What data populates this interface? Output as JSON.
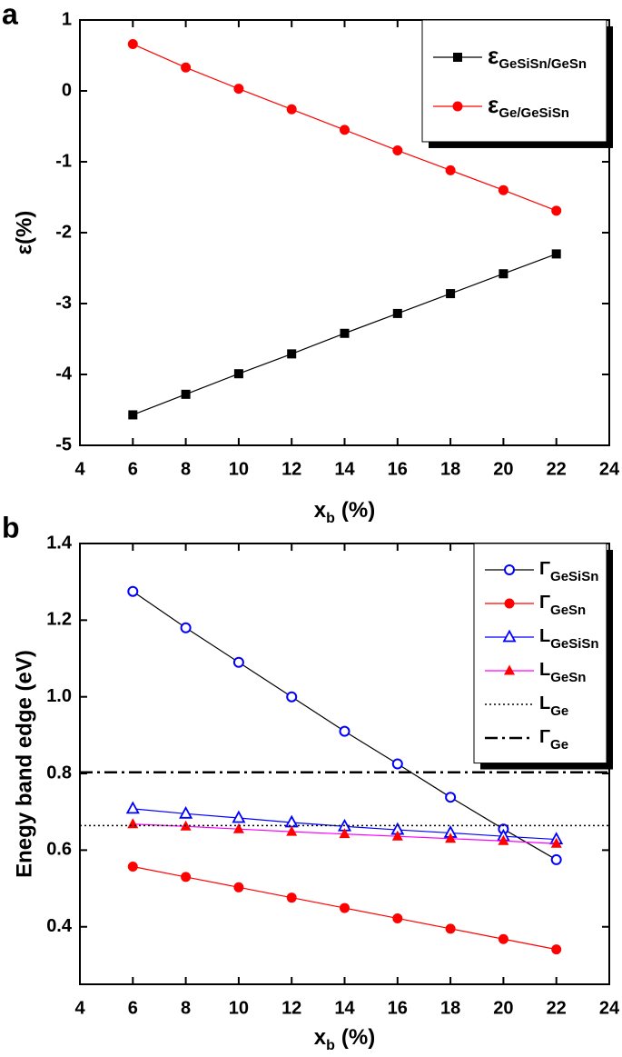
{
  "chart_data": [
    {
      "type": "line",
      "panel_label": "a",
      "y_label": "ε(%)",
      "x_label": [
        "x",
        "b",
        "(%)"
      ],
      "x": [
        6,
        8,
        10,
        12,
        14,
        16,
        18,
        20,
        22
      ],
      "series": [
        {
          "name": "ε",
          "subscript": "GeSiSn/GeSn",
          "color": "#000000",
          "line_color": "#000000",
          "marker": "square",
          "values": [
            -4.57,
            -4.28,
            -3.99,
            -3.71,
            -3.42,
            -3.14,
            -2.86,
            -2.58,
            -2.3
          ]
        },
        {
          "name": "ε",
          "subscript": "Ge/GeSiSn",
          "color": "#ff0000",
          "line_color": "#ff0000",
          "marker": "circle",
          "values": [
            0.66,
            0.33,
            0.03,
            -0.26,
            -0.55,
            -0.84,
            -1.12,
            -1.4,
            -1.69
          ]
        }
      ],
      "xlim": [
        4,
        24
      ],
      "xticks": [
        4,
        6,
        8,
        10,
        12,
        14,
        16,
        18,
        20,
        22,
        24
      ],
      "ylim": [
        -5,
        1
      ],
      "yticks": [
        -5,
        -4,
        -3,
        -2,
        -1,
        0,
        1
      ],
      "legend": "upper right"
    },
    {
      "type": "line",
      "panel_label": "b",
      "y_label": "Enegy band edge (eV)",
      "x_label": [
        "x",
        "b",
        "(%)"
      ],
      "x": [
        6,
        8,
        10,
        12,
        14,
        16,
        18,
        20,
        22
      ],
      "series": [
        {
          "name": "Γ",
          "subscript": "GeSiSn",
          "color": "#0000ff",
          "line_color": "#000000",
          "marker": "circle-open",
          "values": [
            1.275,
            1.18,
            1.09,
            1.0,
            0.91,
            0.825,
            0.738,
            0.655,
            0.575
          ]
        },
        {
          "name": "Γ",
          "subscript": "GeSn",
          "color": "#ff0000",
          "line_color": "#ff0000",
          "marker": "circle",
          "values": [
            0.557,
            0.53,
            0.503,
            0.476,
            0.449,
            0.422,
            0.395,
            0.368,
            0.341
          ]
        },
        {
          "name": "L",
          "subscript": "GeSiSn",
          "color": "#0000ff",
          "line_color": "#0000ff",
          "marker": "triangle-open",
          "values": [
            0.708,
            0.695,
            0.684,
            0.672,
            0.662,
            0.653,
            0.645,
            0.636,
            0.628
          ]
        },
        {
          "name": "L",
          "subscript": "GeSn",
          "color": "#ff0000",
          "line_color": "#ff00ff",
          "marker": "triangle",
          "values": [
            0.668,
            0.662,
            0.655,
            0.648,
            0.642,
            0.636,
            0.63,
            0.624,
            0.617
          ]
        },
        {
          "name": "L",
          "subscript": "Ge",
          "color": "#000000",
          "line_color": "#000000",
          "marker": "none",
          "style": "hline",
          "dash": "dotted",
          "value": 0.664
        },
        {
          "name": "Γ",
          "subscript": "Ge",
          "color": "#000000",
          "line_color": "#000000",
          "marker": "none",
          "style": "hline",
          "dash": "dashdot",
          "value": 0.803
        }
      ],
      "xlim": [
        4,
        24
      ],
      "xticks": [
        4,
        6,
        8,
        10,
        12,
        14,
        16,
        18,
        20,
        22,
        24
      ],
      "ylim": [
        0.25,
        1.4
      ],
      "yticks": [
        0.4,
        0.6,
        0.8,
        {
          "value": 1,
          "label": "1.0"
        },
        1.2,
        1.4
      ],
      "legend": "upper right"
    }
  ]
}
